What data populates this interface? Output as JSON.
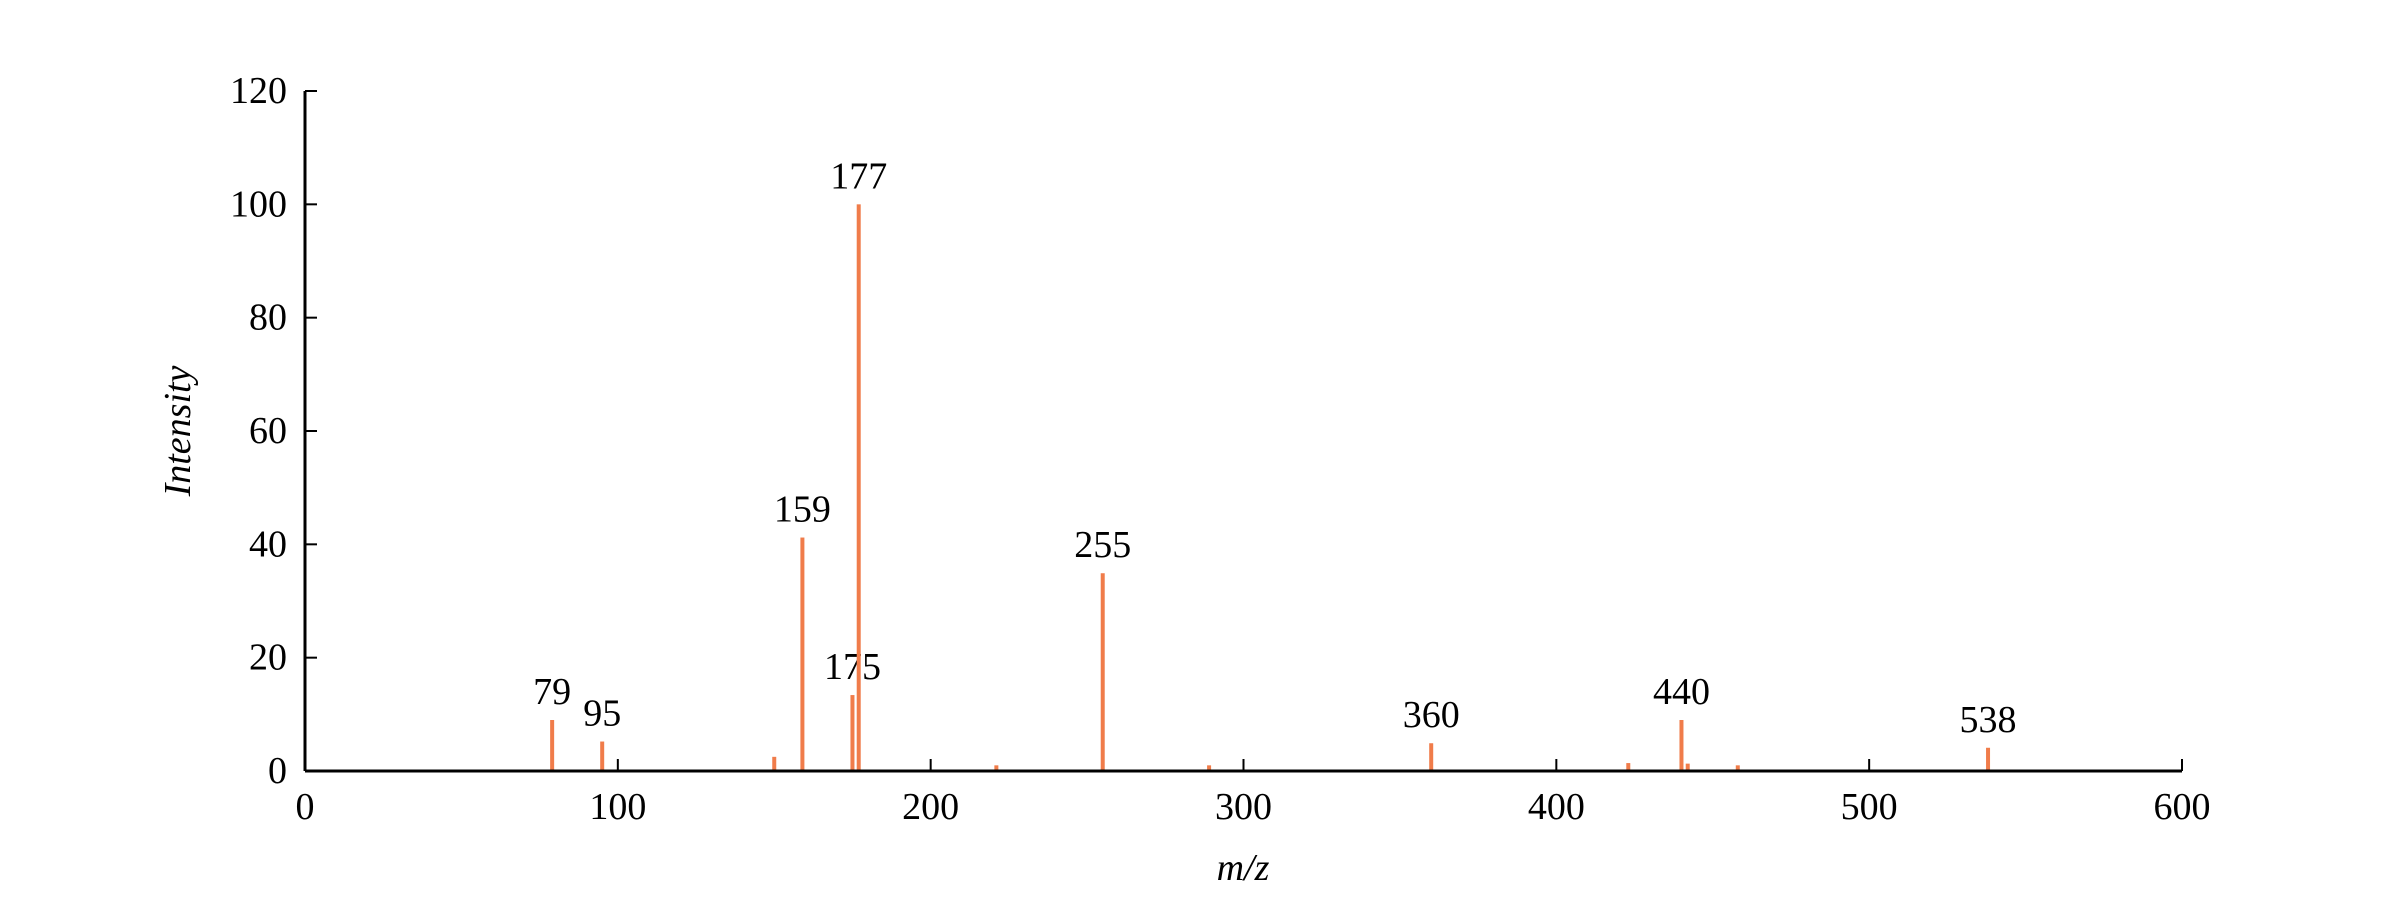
{
  "chart_data": {
    "type": "stem",
    "x_label": "m/z",
    "y_label": "Intensity",
    "x": [
      79,
      95,
      150,
      159,
      175,
      177,
      221,
      255,
      289,
      360,
      423,
      440,
      442,
      458,
      538
    ],
    "values": [
      9,
      5.2,
      2.5,
      41.2,
      13.4,
      100,
      1,
      34.9,
      1,
      4.9,
      1.4,
      9,
      1.3,
      1,
      4.1
    ],
    "labels": [
      79,
      95,
      null,
      159,
      175,
      177,
      null,
      255,
      null,
      360,
      null,
      440,
      null,
      null,
      538
    ],
    "color": "#f07c4a",
    "xlim": [
      0,
      600
    ],
    "xticks": [
      0,
      100,
      200,
      300,
      400,
      500,
      600
    ],
    "ylim": [
      0,
      120
    ],
    "yticks": [
      0,
      20,
      40,
      60,
      80,
      100,
      120
    ]
  }
}
